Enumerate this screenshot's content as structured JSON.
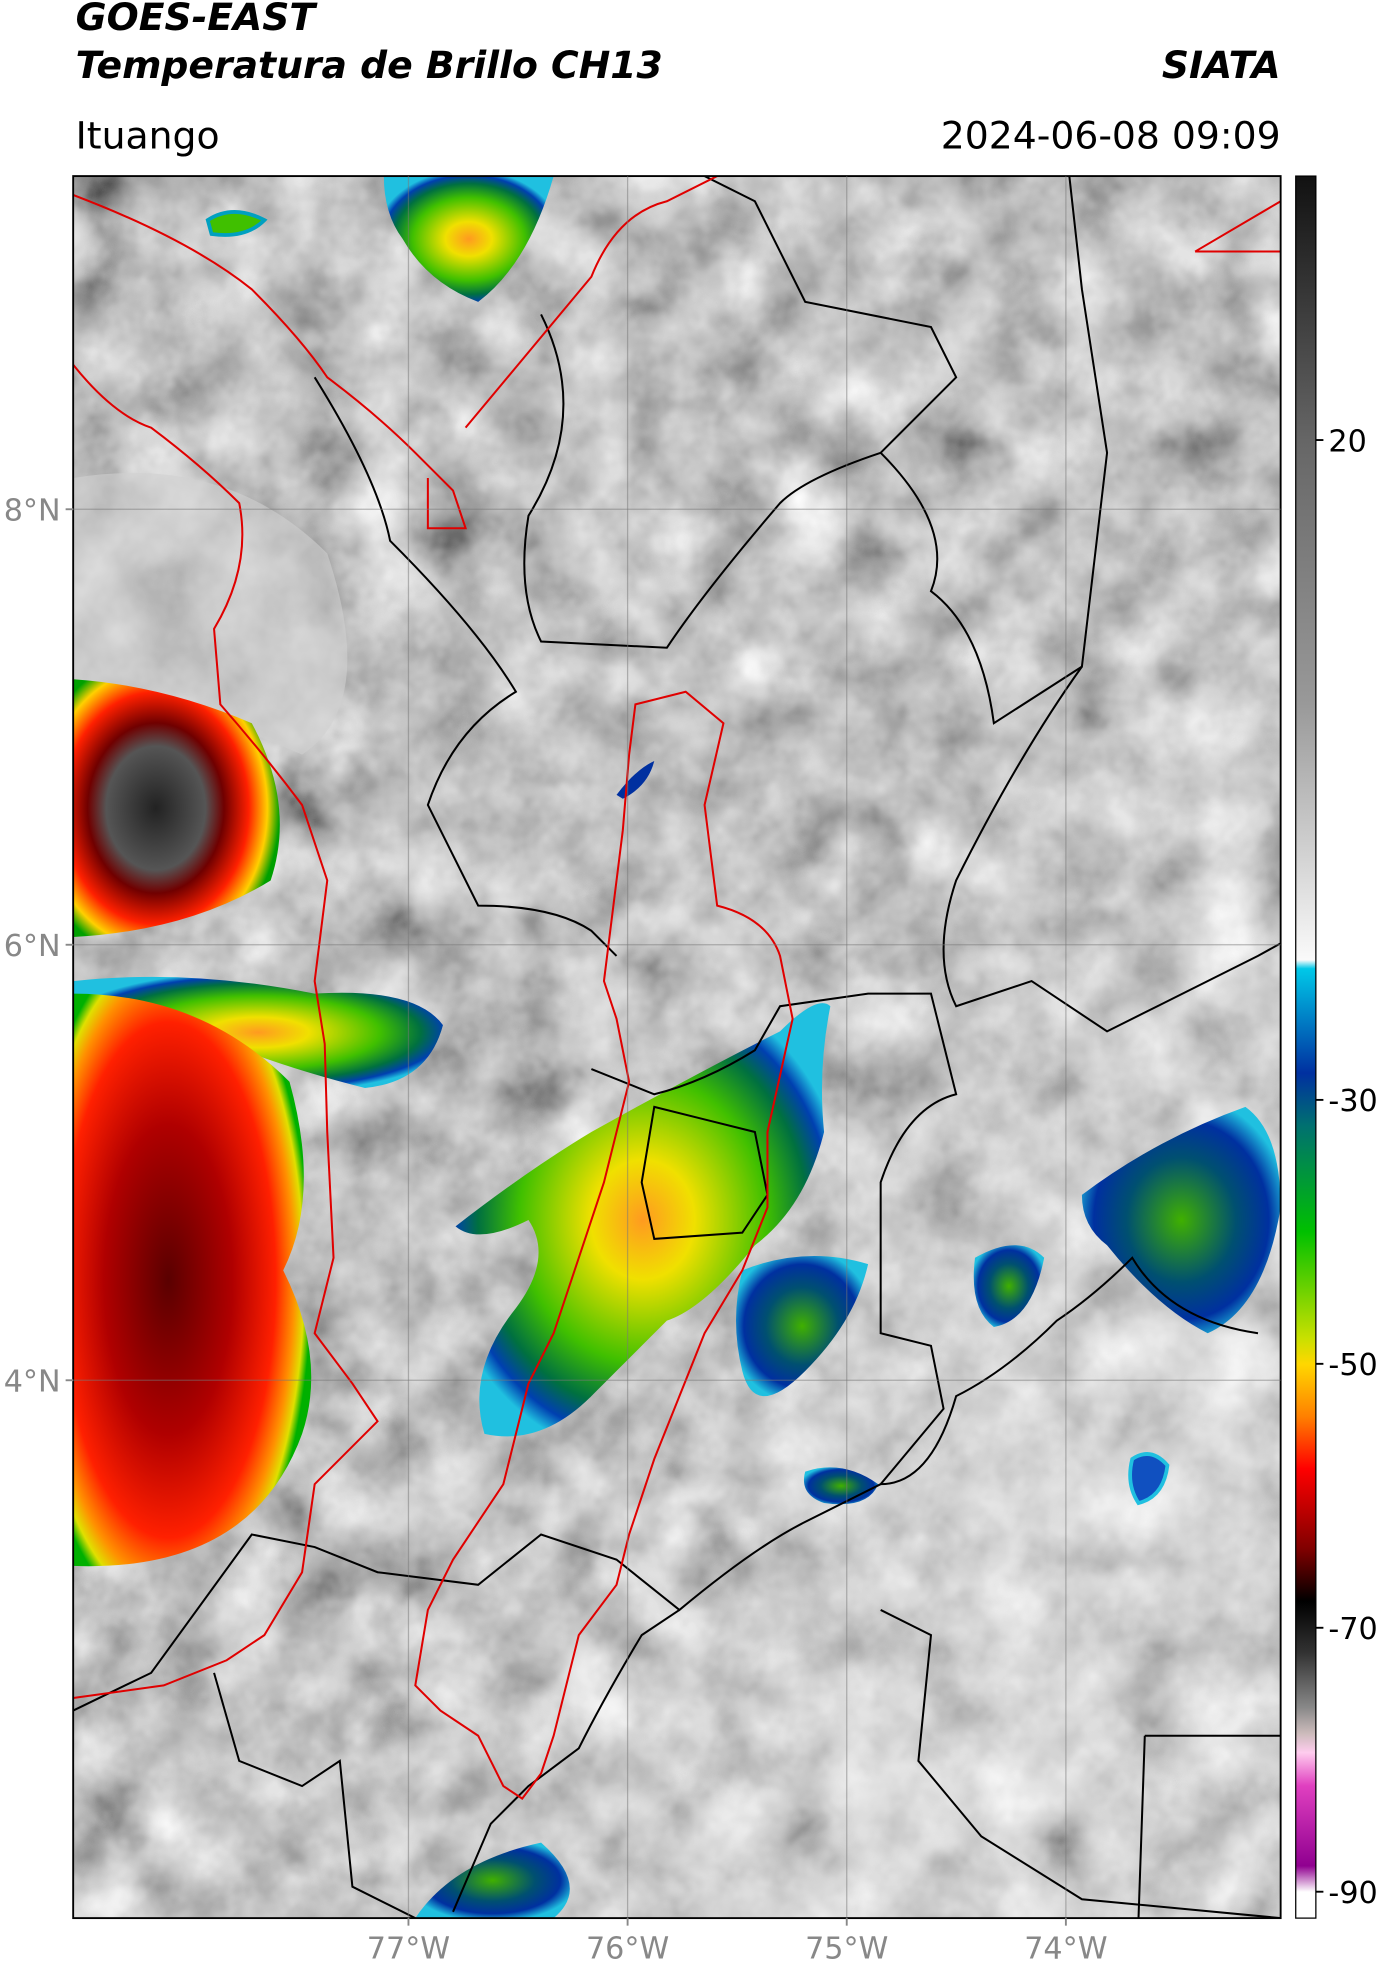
{
  "header": {
    "satellite": "GOES-EAST",
    "product": "Temperatura de Brillo CH13",
    "source": "SIATA",
    "location": "Ituango",
    "timestamp": "2024-06-08 09:09"
  },
  "map": {
    "xlim": [
      -78.53,
      -73.02
    ],
    "ylim": [
      1.53,
      9.53
    ],
    "xticks": [
      {
        "value": -77,
        "label": "77°W"
      },
      {
        "value": -76,
        "label": "76°W"
      },
      {
        "value": -75,
        "label": "75°W"
      },
      {
        "value": -74,
        "label": "74°W"
      }
    ],
    "yticks": [
      {
        "value": 8,
        "label": "8°N"
      },
      {
        "value": 6,
        "label": "6°N"
      },
      {
        "value": 4,
        "label": "4°N"
      }
    ],
    "grid": true
  },
  "colorbar": {
    "lim": [
      -92,
      40
    ],
    "ticks": [
      20,
      -30,
      -50,
      -70,
      -90
    ]
  }
}
